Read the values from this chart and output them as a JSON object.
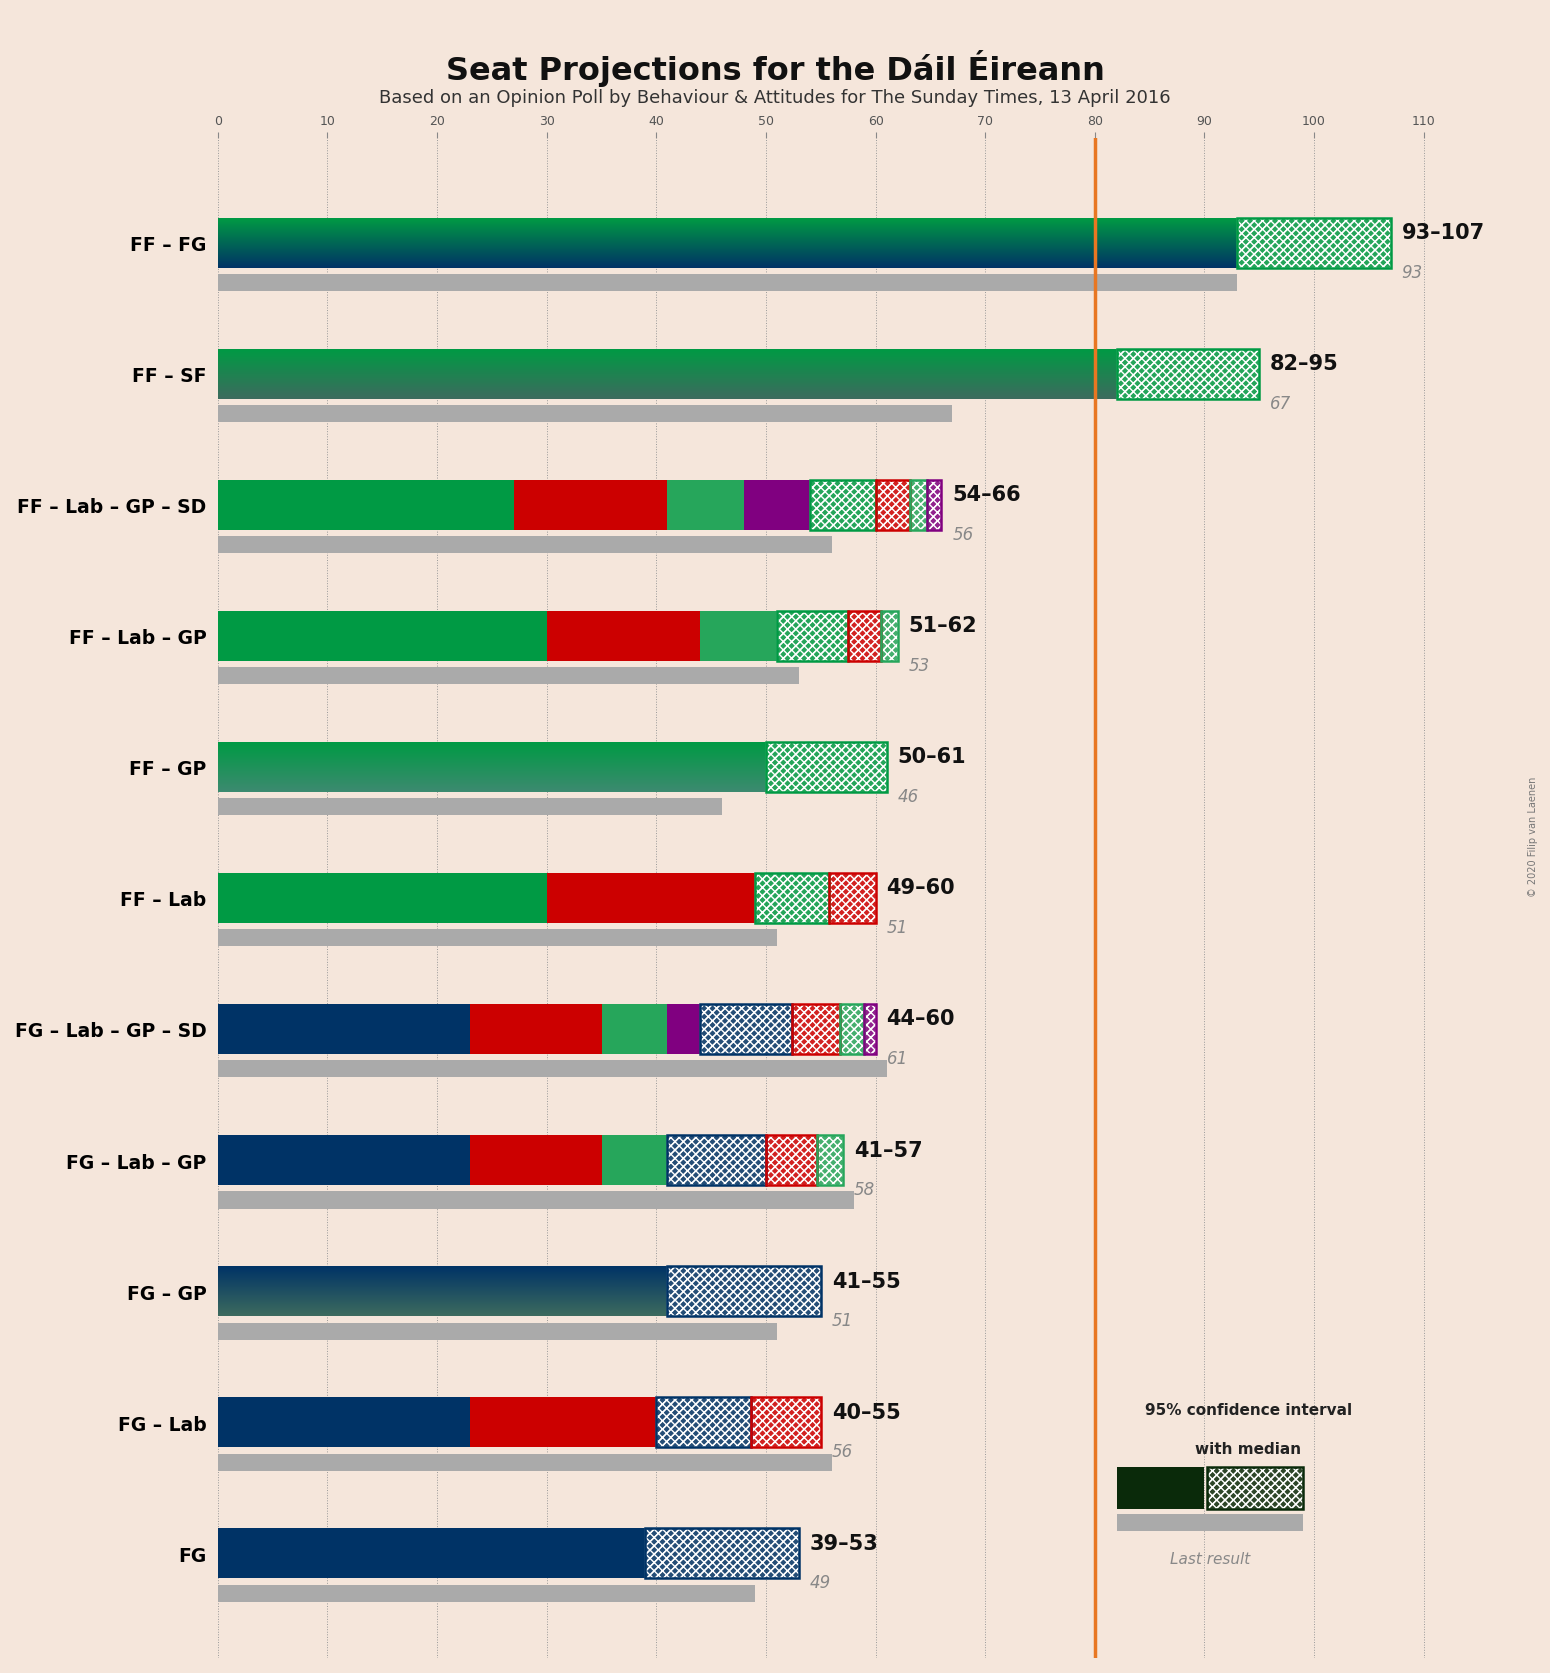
{
  "title": "Seat Projections for the Dáil Éireann",
  "subtitle": "Based on an Opinion Poll by Behaviour & Attitudes for The Sunday Times, 13 April 2016",
  "copyright": "© 2020 Filip van Laenen",
  "background_color": "#f5e6db",
  "coalitions": [
    {
      "name": "FF – FG",
      "low": 93,
      "high": 107,
      "last": 93,
      "segments": [
        {
          "color": "#009a44",
          "color2": "#003366",
          "seats": 93
        }
      ]
    },
    {
      "name": "FF – SF",
      "low": 82,
      "high": 95,
      "last": 67,
      "segments": [
        {
          "color": "#009a44",
          "color2": "#3d6b5e",
          "seats": 82
        }
      ]
    },
    {
      "name": "FF – Lab – GP – SD",
      "low": 54,
      "high": 66,
      "last": 56,
      "segments": [
        {
          "color": "#009a44",
          "color2": "#009a44",
          "seats": 27
        },
        {
          "color": "#cc0000",
          "color2": "#cc0000",
          "seats": 14
        },
        {
          "color": "#26a65b",
          "color2": "#26a65b",
          "seats": 7
        },
        {
          "color": "#800080",
          "color2": "#800080",
          "seats": 6
        }
      ]
    },
    {
      "name": "FF – Lab – GP",
      "low": 51,
      "high": 62,
      "last": 53,
      "segments": [
        {
          "color": "#009a44",
          "color2": "#009a44",
          "seats": 30
        },
        {
          "color": "#cc0000",
          "color2": "#cc0000",
          "seats": 14
        },
        {
          "color": "#26a65b",
          "color2": "#26a65b",
          "seats": 7
        }
      ]
    },
    {
      "name": "FF – GP",
      "low": 50,
      "high": 61,
      "last": 46,
      "segments": [
        {
          "color": "#009a44",
          "color2": "#3d8a70",
          "seats": 50
        }
      ]
    },
    {
      "name": "FF – Lab",
      "low": 49,
      "high": 60,
      "last": 51,
      "segments": [
        {
          "color": "#009a44",
          "color2": "#009a44",
          "seats": 30
        },
        {
          "color": "#cc0000",
          "color2": "#cc0000",
          "seats": 19
        }
      ]
    },
    {
      "name": "FG – Lab – GP – SD",
      "low": 44,
      "high": 60,
      "last": 61,
      "segments": [
        {
          "color": "#003366",
          "color2": "#003366",
          "seats": 23
        },
        {
          "color": "#cc0000",
          "color2": "#cc0000",
          "seats": 12
        },
        {
          "color": "#26a65b",
          "color2": "#26a65b",
          "seats": 6
        },
        {
          "color": "#800080",
          "color2": "#800080",
          "seats": 3
        }
      ]
    },
    {
      "name": "FG – Lab – GP",
      "low": 41,
      "high": 57,
      "last": 58,
      "segments": [
        {
          "color": "#003366",
          "color2": "#003366",
          "seats": 23
        },
        {
          "color": "#cc0000",
          "color2": "#cc0000",
          "seats": 12
        },
        {
          "color": "#26a65b",
          "color2": "#26a65b",
          "seats": 6
        }
      ]
    },
    {
      "name": "FG – GP",
      "low": 41,
      "high": 55,
      "last": 51,
      "segments": [
        {
          "color": "#003366",
          "color2": "#3d6b5e",
          "seats": 41
        }
      ]
    },
    {
      "name": "FG – Lab",
      "low": 40,
      "high": 55,
      "last": 56,
      "segments": [
        {
          "color": "#003366",
          "color2": "#003366",
          "seats": 23
        },
        {
          "color": "#cc0000",
          "color2": "#cc0000",
          "seats": 17
        }
      ]
    },
    {
      "name": "FG",
      "low": 39,
      "high": 53,
      "last": 49,
      "segments": [
        {
          "color": "#003366",
          "color2": "#003366",
          "seats": 39
        }
      ]
    }
  ],
  "xmax": 115,
  "majority_line": 80,
  "legend_text1": "95% confidence interval",
  "legend_text2": "with median",
  "legend_text3": "Last result"
}
